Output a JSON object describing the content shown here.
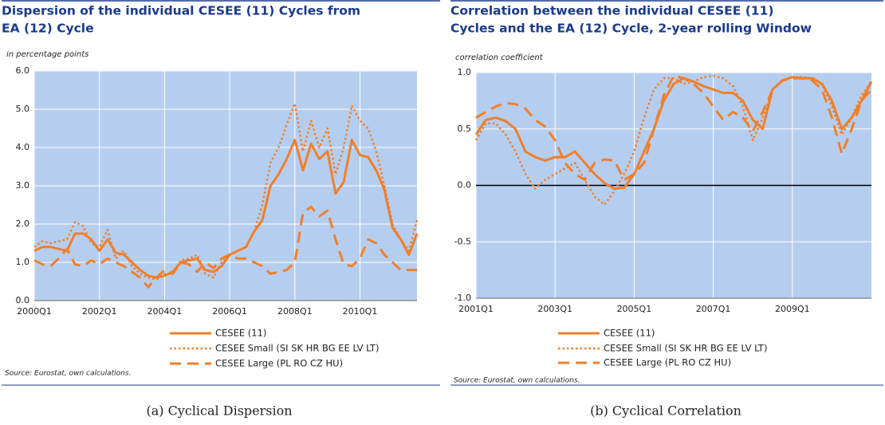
{
  "chart_data": [
    {
      "type": "line",
      "title": [
        "Dispersion of the individual CESEE (11) Cycles from",
        "EA (12) Cycle"
      ],
      "y_label": "in percentage points",
      "source": "Source: Eurostat, own calculations.",
      "caption": "(a) Cyclical Dispersion",
      "categories": [
        "2000Q1",
        null,
        null,
        null,
        null,
        null,
        null,
        null,
        "2002Q1",
        null,
        null,
        null,
        null,
        null,
        null,
        null,
        "2004Q1",
        null,
        null,
        null,
        null,
        null,
        null,
        null,
        "2006Q1",
        null,
        null,
        null,
        null,
        null,
        null,
        null,
        "2008Q1",
        null,
        null,
        null,
        null,
        null,
        null,
        null,
        "2010Q1",
        null,
        null,
        null,
        null,
        null,
        null,
        null
      ],
      "ylim": [
        0,
        6
      ],
      "yticks": [
        {
          "value": 0,
          "label": "0.0"
        },
        {
          "value": 1,
          "label": "1.0"
        },
        {
          "value": 2,
          "label": "2.0"
        },
        {
          "value": 3,
          "label": "3.0"
        },
        {
          "value": 4,
          "label": "4.0"
        },
        {
          "value": 5,
          "label": "5.0"
        },
        {
          "value": 6,
          "label": "6.0"
        }
      ],
      "grid": true,
      "background": "#b5cef0",
      "series": [
        {
          "name": "CESEE (11)",
          "color": "#f07f2a",
          "style": "solid",
          "values": [
            1.3,
            1.4,
            1.4,
            1.35,
            1.3,
            1.75,
            1.75,
            1.6,
            1.3,
            1.6,
            1.25,
            1.2,
            1.0,
            0.8,
            0.65,
            0.6,
            0.65,
            0.75,
            1.0,
            1.05,
            1.1,
            0.8,
            0.75,
            0.9,
            1.2,
            1.3,
            1.4,
            1.8,
            2.1,
            3.0,
            3.3,
            3.7,
            4.2,
            3.4,
            4.1,
            3.7,
            3.9,
            2.8,
            3.1,
            4.2,
            3.8,
            3.75,
            3.4,
            2.9,
            1.9,
            1.6,
            1.2,
            1.75
          ]
        },
        {
          "name": "CESEE Small (SI SK HR BG EE LV LT)",
          "color": "#f07f2a",
          "style": "dotted",
          "values": [
            1.4,
            1.55,
            1.5,
            1.55,
            1.6,
            2.05,
            1.95,
            1.5,
            1.4,
            1.85,
            1.1,
            1.3,
            0.9,
            0.7,
            0.6,
            0.55,
            0.7,
            0.7,
            1.05,
            1.1,
            1.2,
            0.7,
            0.6,
            1.0,
            1.2,
            1.3,
            1.4,
            1.8,
            2.5,
            3.6,
            4.0,
            4.6,
            5.15,
            3.9,
            4.7,
            4.0,
            4.5,
            3.3,
            4.0,
            5.1,
            4.7,
            4.5,
            3.9,
            3.0,
            2.0,
            1.6,
            1.3,
            2.1
          ]
        },
        {
          "name": "CESEE Large (PL RO CZ HU)",
          "color": "#f07f2a",
          "style": "dashed",
          "values": [
            1.05,
            0.95,
            0.9,
            1.1,
            1.35,
            0.95,
            0.9,
            1.05,
            0.95,
            1.1,
            1.0,
            0.9,
            0.75,
            0.6,
            0.35,
            0.6,
            0.8,
            0.7,
            1.0,
            0.95,
            0.75,
            1.0,
            0.85,
            1.1,
            1.2,
            1.1,
            1.1,
            1.0,
            0.9,
            0.7,
            0.75,
            0.8,
            1.0,
            2.3,
            2.45,
            2.2,
            2.35,
            1.6,
            0.95,
            0.9,
            1.1,
            1.6,
            1.5,
            1.2,
            1.0,
            0.8,
            0.8,
            0.8
          ]
        }
      ]
    },
    {
      "type": "line",
      "title": [
        "Correlation between the individual CESEE (11)",
        "Cycles and the EA (12) Cycle, 2-year rolling Window"
      ],
      "y_label": "correlation coefficient",
      "source": "Source: Eurostat, own calculations.",
      "caption": "(b) Cyclical Correlation",
      "categories": [
        "2001Q1",
        null,
        null,
        null,
        null,
        null,
        null,
        null,
        "2003Q1",
        null,
        null,
        null,
        null,
        null,
        null,
        null,
        "2005Q1",
        null,
        null,
        null,
        null,
        null,
        null,
        null,
        "2007Q1",
        null,
        null,
        null,
        null,
        null,
        null,
        null,
        "2009Q1",
        null,
        null,
        null,
        null,
        null,
        null,
        null,
        null
      ],
      "ylim": [
        -1,
        1
      ],
      "yticks": [
        {
          "value": -1,
          "label": "-1.0"
        },
        {
          "value": -0.5,
          "label": "-0.5"
        },
        {
          "value": 0,
          "label": "0.0"
        },
        {
          "value": 0.5,
          "label": "0.5"
        },
        {
          "value": 1,
          "label": "1.0"
        }
      ],
      "grid": true,
      "zero_line": true,
      "background": "#b5cef0",
      "series": [
        {
          "name": "CESEE (11)",
          "color": "#f07f2a",
          "style": "solid",
          "values": [
            0.45,
            0.58,
            0.6,
            0.57,
            0.5,
            0.3,
            0.25,
            0.22,
            0.25,
            0.25,
            0.3,
            0.2,
            0.1,
            0.02,
            -0.03,
            -0.02,
            0.1,
            0.3,
            0.5,
            0.75,
            0.9,
            0.95,
            0.92,
            0.88,
            0.85,
            0.82,
            0.82,
            0.75,
            0.58,
            0.5,
            0.85,
            0.93,
            0.96,
            0.95,
            0.95,
            0.9,
            0.75,
            0.5,
            0.6,
            0.75,
            0.92
          ]
        },
        {
          "name": "CESEE Small (SI SK HR BG EE LV LT)",
          "color": "#f07f2a",
          "style": "dotted",
          "values": [
            0.4,
            0.55,
            0.55,
            0.45,
            0.3,
            0.1,
            -0.03,
            0.05,
            0.1,
            0.15,
            0.2,
            0.05,
            -0.1,
            -0.17,
            -0.05,
            0.1,
            0.3,
            0.6,
            0.85,
            0.95,
            0.95,
            0.9,
            0.92,
            0.96,
            0.97,
            0.95,
            0.88,
            0.7,
            0.4,
            0.6,
            0.85,
            0.93,
            0.96,
            0.96,
            0.95,
            0.9,
            0.7,
            0.45,
            0.6,
            0.8,
            0.92
          ]
        },
        {
          "name": "CESEE Large (PL RO CZ HU)",
          "color": "#f07f2a",
          "style": "dashed",
          "values": [
            0.6,
            0.65,
            0.7,
            0.73,
            0.72,
            0.68,
            0.58,
            0.52,
            0.4,
            0.2,
            0.1,
            0.05,
            0.2,
            0.23,
            0.22,
            0.05,
            0.1,
            0.2,
            0.5,
            0.8,
            0.97,
            0.95,
            0.9,
            0.82,
            0.7,
            0.58,
            0.65,
            0.6,
            0.48,
            0.65,
            0.85,
            0.93,
            0.95,
            0.95,
            0.93,
            0.85,
            0.6,
            0.28,
            0.5,
            0.75,
            0.85
          ]
        }
      ]
    }
  ]
}
